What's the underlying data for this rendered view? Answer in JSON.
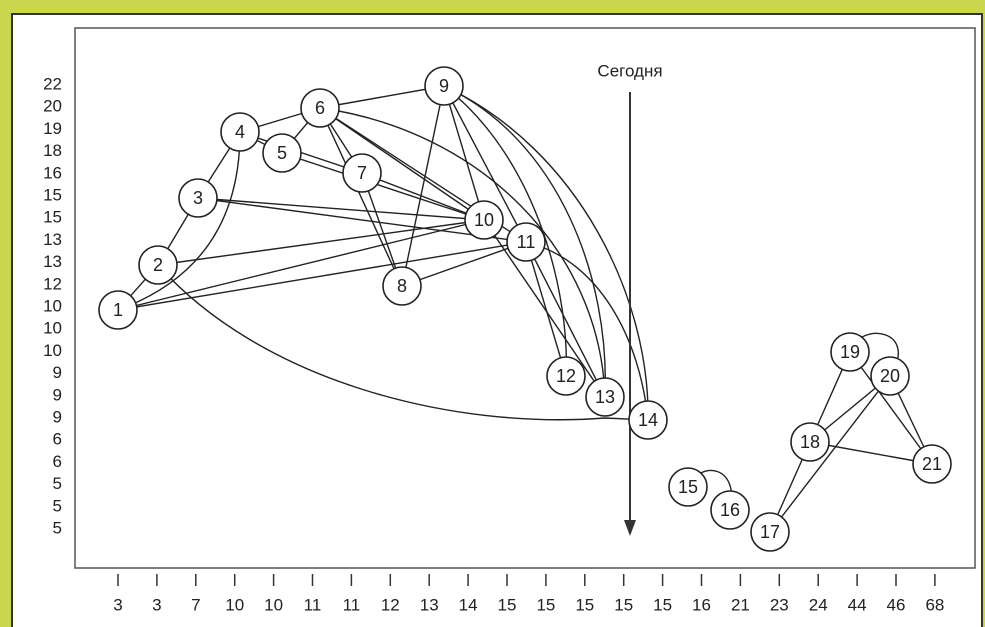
{
  "annotation": "Сегодня",
  "nodes": [
    {
      "label": "1"
    },
    {
      "label": "2"
    },
    {
      "label": "3"
    },
    {
      "label": "4"
    },
    {
      "label": "5"
    },
    {
      "label": "6"
    },
    {
      "label": "7"
    },
    {
      "label": "8"
    },
    {
      "label": "9"
    },
    {
      "label": "10"
    },
    {
      "label": "11"
    },
    {
      "label": "12"
    },
    {
      "label": "13"
    },
    {
      "label": "14"
    },
    {
      "label": "15"
    },
    {
      "label": "16"
    },
    {
      "label": "17"
    },
    {
      "label": "18"
    },
    {
      "label": "19"
    },
    {
      "label": "20"
    },
    {
      "label": "21"
    }
  ],
  "x_axis_labels": [
    "3",
    "3",
    "7",
    "10",
    "10",
    "11",
    "11",
    "12",
    "13",
    "14",
    "15",
    "15",
    "15",
    "15",
    "15",
    "16",
    "21",
    "23",
    "24",
    "44",
    "46",
    "68"
  ],
  "y_axis_labels": [
    "22",
    "20",
    "19",
    "18",
    "16",
    "15",
    "15",
    "13",
    "13",
    "12",
    "10",
    "10",
    "10",
    "9",
    "9",
    "9",
    "6",
    "6",
    "5",
    "5",
    "5"
  ]
}
